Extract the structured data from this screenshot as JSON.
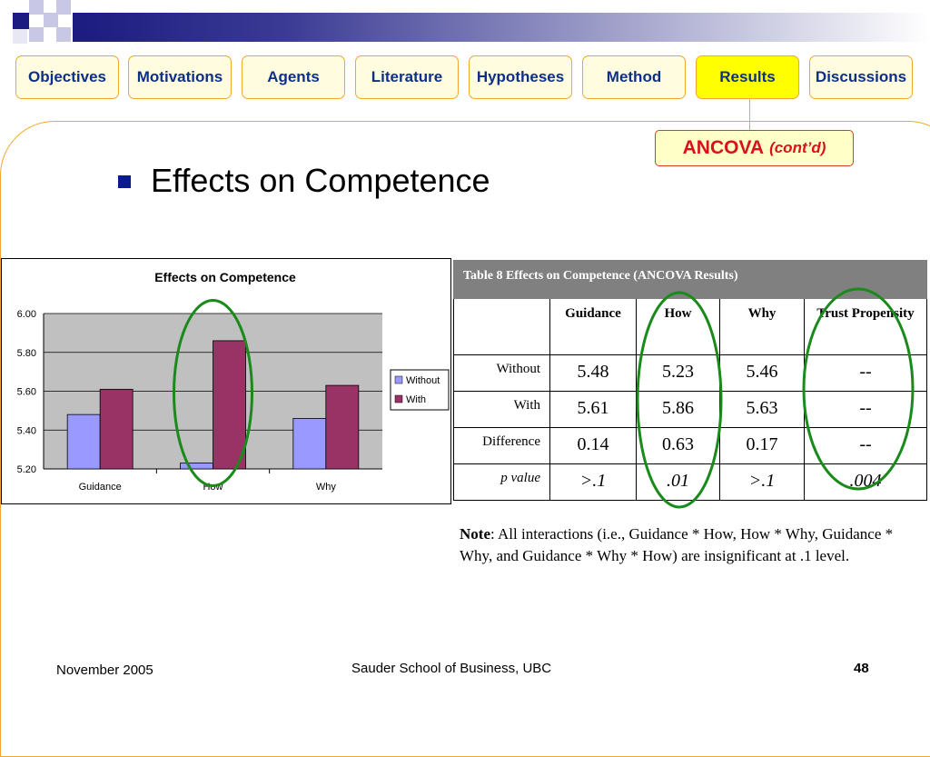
{
  "nav": {
    "tabs": [
      {
        "label": "Objectives",
        "active": false
      },
      {
        "label": "Motivations",
        "active": false
      },
      {
        "label": "Agents",
        "active": false
      },
      {
        "label": "Literature",
        "active": false
      },
      {
        "label": "Hypotheses",
        "active": false
      },
      {
        "label": "Method",
        "active": false
      },
      {
        "label": "Results",
        "active": true
      },
      {
        "label": "Discussions",
        "active": false
      }
    ],
    "subsection": {
      "main": "ANCOVA",
      "small": "(cont’d)"
    }
  },
  "slide": {
    "heading": "Effects on Competence"
  },
  "chart_data": {
    "type": "bar",
    "title": "Effects on Competence",
    "categories": [
      "Guidance",
      "How",
      "Why"
    ],
    "series": [
      {
        "name": "Without",
        "values": [
          5.48,
          5.23,
          5.46
        ],
        "color": "#9999ff"
      },
      {
        "name": "With",
        "values": [
          5.61,
          5.86,
          5.63
        ],
        "color": "#993366"
      }
    ],
    "ylim": [
      5.2,
      6.0
    ],
    "yticks": [
      "6.00",
      "5.80",
      "5.60",
      "5.40",
      "5.20"
    ],
    "grid": true,
    "legend_position": "right",
    "plot_background": "#c0c0c0",
    "highlight_color": "#1a8a1a"
  },
  "table": {
    "caption": "Table 8 Effects on Competence (ANCOVA Results)",
    "headers": [
      "",
      "Guidance",
      "How",
      "Why",
      "Trust Propensity"
    ],
    "rows": [
      {
        "label": "Without",
        "cells": [
          "5.48",
          "5.23",
          "5.46",
          "--"
        ],
        "italic": false
      },
      {
        "label": "With",
        "cells": [
          "5.61",
          "5.86",
          "5.63",
          "--"
        ],
        "italic": false
      },
      {
        "label": "Difference",
        "cells": [
          "0.14",
          "0.63",
          "0.17",
          "--"
        ],
        "italic": false
      },
      {
        "label": "p value",
        "cells": [
          ">.1",
          ".01",
          ">.1",
          ".004"
        ],
        "italic": true
      }
    ]
  },
  "note": {
    "label": "Note",
    "text": ": All interactions (i.e., Guidance * How, How * Why, Guidance * Why, and Guidance * Why * How) are insignificant at .1 level."
  },
  "footer": {
    "date": "November 2005",
    "school": "Sauder School of Business, UBC",
    "page": "48"
  }
}
